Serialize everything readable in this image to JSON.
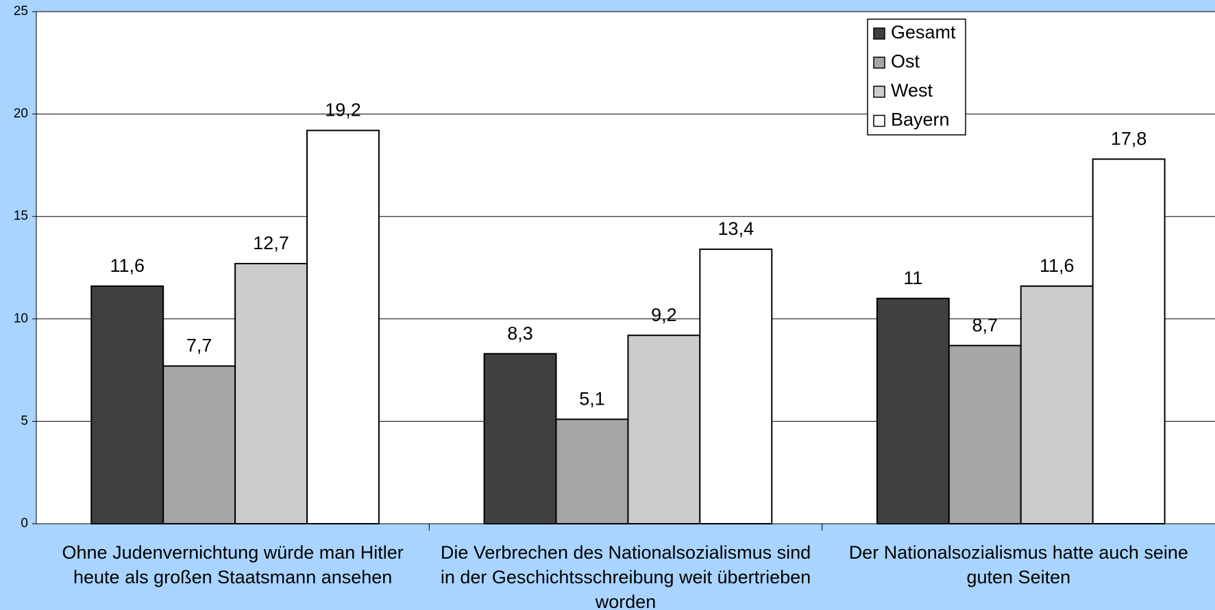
{
  "chart_data": {
    "type": "bar",
    "categories": [
      "Ohne Judenvernichtung würde man Hitler heute als großen Staatsmann ansehen",
      "Die Verbrechen des Nationalsozialismus sind in der Geschichtsschreibung weit übertrieben worden",
      "Der Nationalsozialismus hatte auch seine guten Seiten"
    ],
    "series": [
      {
        "name": "Gesamt",
        "color": "#404040",
        "values": [
          11.6,
          8.3,
          11
        ],
        "value_labels": [
          "11,6",
          "8,3",
          "11"
        ]
      },
      {
        "name": "Ost",
        "color": "#a6a6a6",
        "values": [
          7.7,
          5.1,
          8.7
        ],
        "value_labels": [
          "7,7",
          "5,1",
          "8,7"
        ]
      },
      {
        "name": "West",
        "color": "#cccccc",
        "values": [
          12.7,
          9.2,
          11.6
        ],
        "value_labels": [
          "12,7",
          "9,2",
          "11,6"
        ]
      },
      {
        "name": "Bayern",
        "color": "#ffffff",
        "values": [
          19.2,
          13.4,
          17.8
        ],
        "value_labels": [
          "19,2",
          "13,4",
          "17,8"
        ]
      }
    ],
    "ylim": [
      0,
      25
    ],
    "yticks": [
      0,
      5,
      10,
      15,
      20,
      25
    ],
    "grid": true,
    "legend": "top-right"
  }
}
